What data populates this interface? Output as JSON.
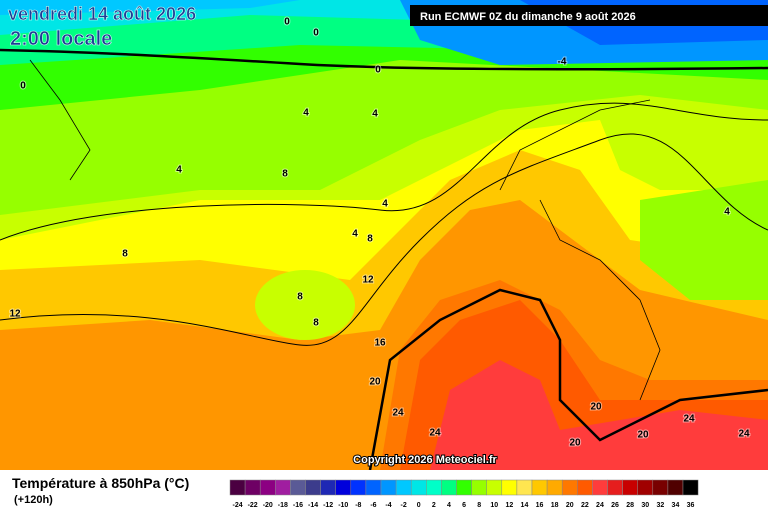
{
  "header": {
    "title": "vendredi 14 août 2026",
    "time": "2:00 locale",
    "run": "Run ECMWF 0Z du dimanche 9 août 2026"
  },
  "contour_labels": [
    0,
    0,
    0,
    0,
    -4,
    4,
    4,
    4,
    4,
    4,
    4,
    8,
    8,
    8,
    8,
    8,
    12,
    12,
    16,
    20,
    20,
    20,
    20,
    24,
    24,
    24,
    24
  ],
  "copyright": "Copyright 2026 Meteociel.fr",
  "legend": {
    "title": "Température à 850hPa (°C)",
    "subtitle": "(+120h)",
    "ticks": [
      -24,
      -22,
      -20,
      -18,
      -16,
      -14,
      -12,
      -10,
      -8,
      -6,
      -4,
      -2,
      0,
      2,
      4,
      6,
      8,
      10,
      12,
      14,
      16,
      18,
      20,
      22,
      24,
      26,
      28,
      30,
      32,
      34,
      36
    ],
    "colors": [
      "#4b0041",
      "#6e0064",
      "#8c0082",
      "#a01ea0",
      "#5a5a96",
      "#3c3c8c",
      "#1e28b4",
      "#0000dc",
      "#0032ff",
      "#0064ff",
      "#0096ff",
      "#00c8ff",
      "#00e6e6",
      "#00ffc8",
      "#00ff82",
      "#32ff00",
      "#96ff00",
      "#c8ff00",
      "#ffff00",
      "#ffe650",
      "#ffc800",
      "#ffaa00",
      "#ff7800",
      "#ff5a00",
      "#ff3c3c",
      "#e61e1e",
      "#c80000",
      "#a00000",
      "#780000",
      "#500000",
      "#000000"
    ]
  }
}
